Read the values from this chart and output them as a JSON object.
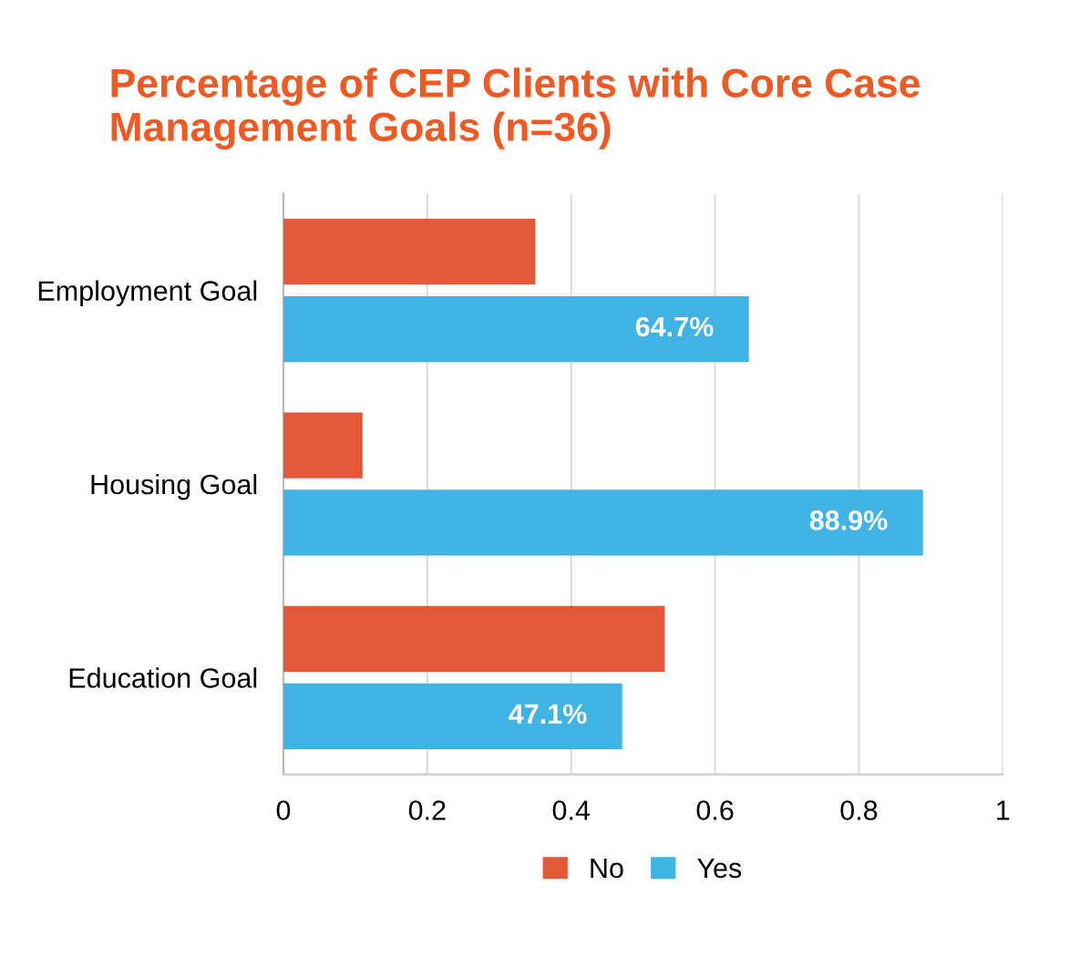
{
  "chart_data": {
    "type": "bar",
    "orientation": "horizontal",
    "title": "Percentage of CEP Clients with Core Case\nManagement Goals (n=36)",
    "categories": [
      "Employment Goal",
      "Housing Goal",
      "Education Goal"
    ],
    "series": [
      {
        "name": "No",
        "color": "#e4583a",
        "values": [
          0.35,
          0.11,
          0.53
        ]
      },
      {
        "name": "Yes",
        "color": "#3fb4e4",
        "values": [
          0.647,
          0.889,
          0.471
        ],
        "value_labels": [
          "64.7%",
          "88.9%",
          "47.1%"
        ]
      }
    ],
    "xlim": [
      0,
      1
    ],
    "xticks": [
      0,
      0.2,
      0.4,
      0.6,
      0.8,
      1
    ],
    "grid": "x",
    "legend": "bottom"
  }
}
